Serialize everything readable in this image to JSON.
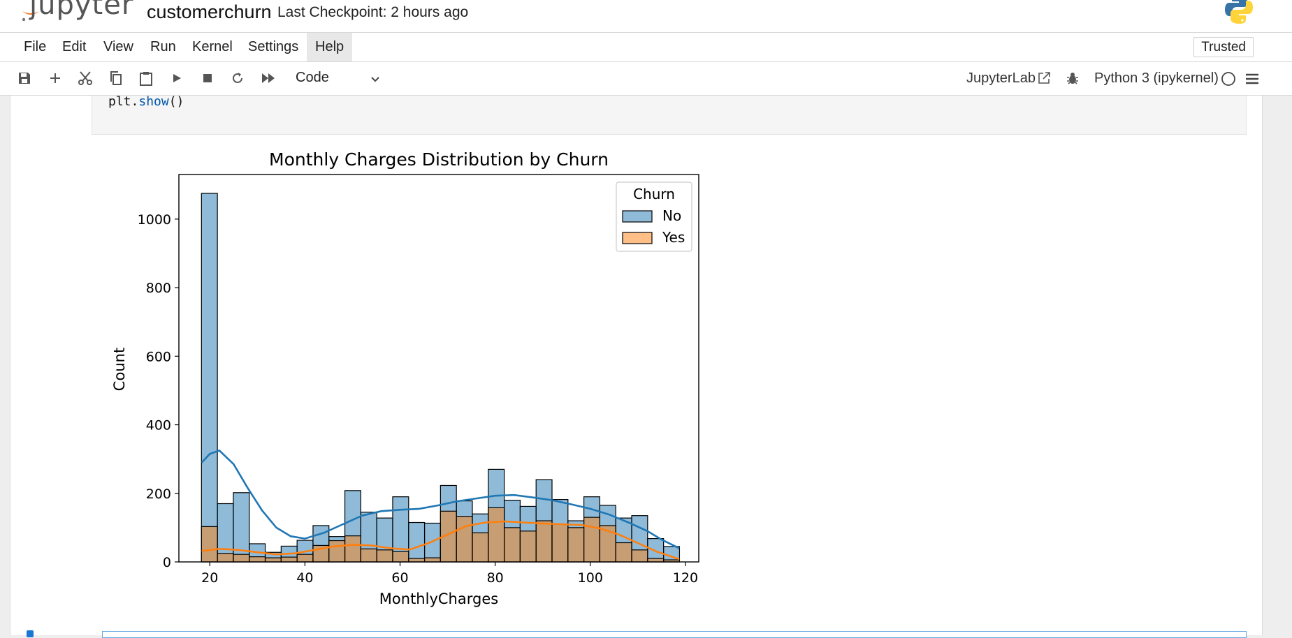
{
  "app": {
    "logo_text": "jupyter",
    "notebook_name": "customerchurn",
    "checkpoint": "Last Checkpoint: 2 hours ago",
    "accent": "#f37726"
  },
  "menu": {
    "items": [
      "File",
      "Edit",
      "View",
      "Run",
      "Kernel",
      "Settings",
      "Help"
    ],
    "active": "Help",
    "trusted_label": "Trusted"
  },
  "toolbar": {
    "icons": [
      "save-icon",
      "add-cell-icon",
      "cut-icon",
      "copy-icon",
      "paste-icon",
      "run-icon",
      "stop-icon",
      "restart-icon",
      "run-all-icon"
    ],
    "cell_type": "Code",
    "jupyterlab_label": "JupyterLab",
    "kernel_label": "Python 3 (ipykernel)"
  },
  "cell": {
    "code_obj": "plt.",
    "code_fn": "show",
    "code_tail": "()"
  },
  "chart_data": {
    "type": "bar",
    "title": "Monthly Charges Distribution by Churn",
    "xlabel": "MonthlyCharges",
    "ylabel": "Count",
    "xlim": [
      13.5,
      122.8
    ],
    "ylim": [
      0,
      1130
    ],
    "xticks": [
      20,
      40,
      60,
      80,
      100,
      120
    ],
    "yticks": [
      0,
      200,
      400,
      600,
      800,
      1000
    ],
    "grid": false,
    "legend": {
      "title": "Churn",
      "placement": "top-right"
    },
    "bin_start": 18.25,
    "bin_width": 3.35,
    "series": [
      {
        "name": "No",
        "color": "#1f77b4",
        "values": [
          1075,
          170,
          202,
          53,
          28,
          46,
          63,
          106,
          74,
          208,
          145,
          128,
          190,
          115,
          113,
          223,
          178,
          140,
          270,
          180,
          162,
          240,
          182,
          120,
          190,
          165,
          128,
          135,
          68,
          45
        ],
        "kde": [
          [
            18.3,
            290
          ],
          [
            20,
            315
          ],
          [
            22,
            325
          ],
          [
            25,
            285
          ],
          [
            28,
            215
          ],
          [
            31,
            150
          ],
          [
            34,
            100
          ],
          [
            37,
            75
          ],
          [
            40,
            68
          ],
          [
            44,
            85
          ],
          [
            48,
            110
          ],
          [
            52,
            135
          ],
          [
            56,
            148
          ],
          [
            60,
            152
          ],
          [
            64,
            155
          ],
          [
            68,
            165
          ],
          [
            72,
            177
          ],
          [
            76,
            185
          ],
          [
            80,
            193
          ],
          [
            84,
            195
          ],
          [
            88,
            188
          ],
          [
            92,
            180
          ],
          [
            96,
            168
          ],
          [
            100,
            155
          ],
          [
            104,
            138
          ],
          [
            108,
            115
          ],
          [
            112,
            90
          ],
          [
            115,
            65
          ],
          [
            118.7,
            40
          ]
        ]
      },
      {
        "name": "Yes",
        "color": "#ff7f0e",
        "values": [
          103,
          25,
          22,
          15,
          12,
          14,
          22,
          48,
          62,
          76,
          38,
          35,
          30,
          10,
          12,
          148,
          133,
          85,
          158,
          100,
          90,
          120,
          110,
          100,
          130,
          106,
          56,
          35,
          10,
          6
        ],
        "kde": [
          [
            18.3,
            32
          ],
          [
            22,
            38
          ],
          [
            26,
            35
          ],
          [
            30,
            28
          ],
          [
            34,
            22
          ],
          [
            38,
            25
          ],
          [
            42,
            35
          ],
          [
            46,
            45
          ],
          [
            50,
            50
          ],
          [
            54,
            48
          ],
          [
            58,
            40
          ],
          [
            62,
            36
          ],
          [
            66,
            55
          ],
          [
            70,
            80
          ],
          [
            74,
            105
          ],
          [
            78,
            115
          ],
          [
            82,
            118
          ],
          [
            86,
            115
          ],
          [
            90,
            112
          ],
          [
            94,
            110
          ],
          [
            98,
            108
          ],
          [
            102,
            98
          ],
          [
            106,
            80
          ],
          [
            110,
            55
          ],
          [
            114,
            30
          ],
          [
            118.7,
            8
          ]
        ]
      }
    ]
  }
}
